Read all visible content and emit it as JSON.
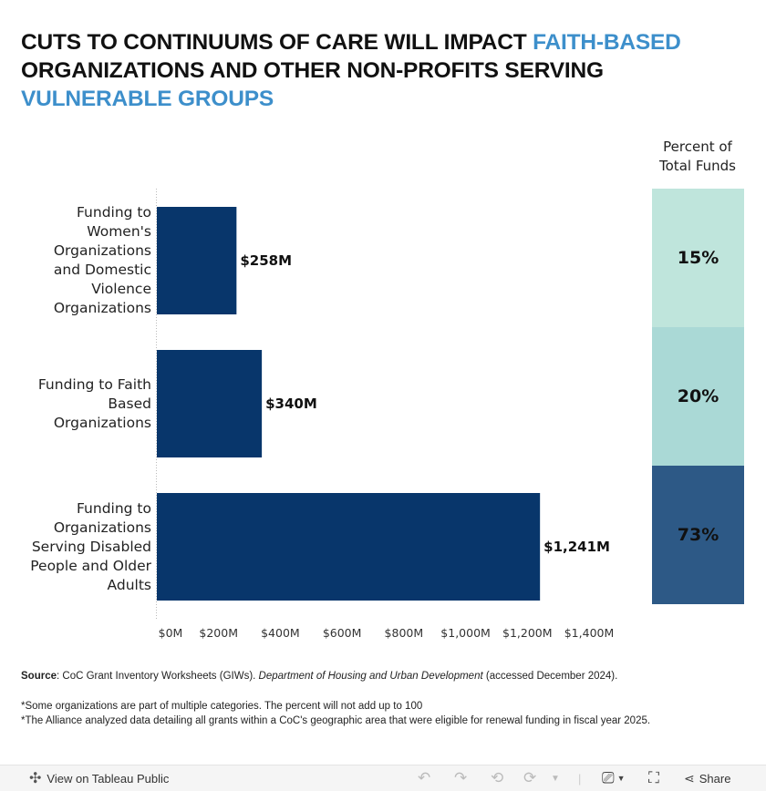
{
  "title": {
    "parts": [
      {
        "text": "CUTS TO CONTINUUMS OF CARE WILL IMPACT ",
        "highlight": false
      },
      {
        "text": "FAITH-BASED",
        "highlight": true
      },
      {
        "text": " ORGANIZATIONS AND OTHER NON-PROFITS SERVING ",
        "highlight": false
      },
      {
        "text": "VULNERABLE GROUPS",
        "highlight": true
      }
    ],
    "highlight_color": "#3d8fcb"
  },
  "chart_data": {
    "type": "bar",
    "orientation": "horizontal",
    "title": "CUTS TO CONTINUUMS OF CARE WILL IMPACT FAITH-BASED ORGANIZATIONS AND OTHER NON-PROFITS SERVING VULNERABLE GROUPS",
    "categories": [
      "Funding to\nWomen's\nOrganizations\nand Domestic\nViolence\nOrganizations",
      "Funding to Faith\nBased\nOrganizations",
      "Funding to\nOrganizations\nServing Disabled\nPeople and Older\nAdults"
    ],
    "values": [
      258,
      340,
      1241
    ],
    "value_labels": [
      "$258M",
      "$340M",
      "$1,241M"
    ],
    "unit": "$M",
    "xlabel": "",
    "ylabel": "",
    "xlim": [
      0,
      1400
    ],
    "x_ticks": [
      0,
      200,
      400,
      600,
      800,
      1000,
      1200,
      1400
    ],
    "x_tick_labels": [
      "$0M",
      "$200M",
      "$400M",
      "$600M",
      "$800M",
      "$1,000M",
      "$1,200M",
      "$1,400M"
    ],
    "bar_color": "#08366b",
    "grid": false,
    "percent_of_total": {
      "header": "Percent of\nTotal Funds",
      "values": [
        15,
        20,
        73
      ],
      "labels": [
        "15%",
        "20%",
        "73%"
      ],
      "colors": [
        "#bfe5dc",
        "#aad9d6",
        "#2d5986"
      ]
    }
  },
  "notes": {
    "source_label": "Source",
    "source_text": ": CoC Grant Inventory Worksheets (GIWs). ",
    "source_italic": "Department of Housing and Urban Development",
    "source_tail": " (accessed December 2024).",
    "footnote_1": "*Some organizations are part of multiple categories. The percent will not add up to 100",
    "footnote_2": "*The Alliance analyzed data detailing all grants within a CoC's geographic area that were eligible for renewal funding in fiscal year 2025."
  },
  "toolbar": {
    "view_label": "View on Tableau Public",
    "share_label": "Share",
    "undo_icon": "undo-icon",
    "redo_icon": "redo-icon",
    "revert_icon": "revert-icon",
    "refresh_icon": "refresh-icon",
    "download_icon": "download-icon",
    "fullscreen_icon": "fullscreen-icon",
    "share_icon": "share-icon"
  }
}
